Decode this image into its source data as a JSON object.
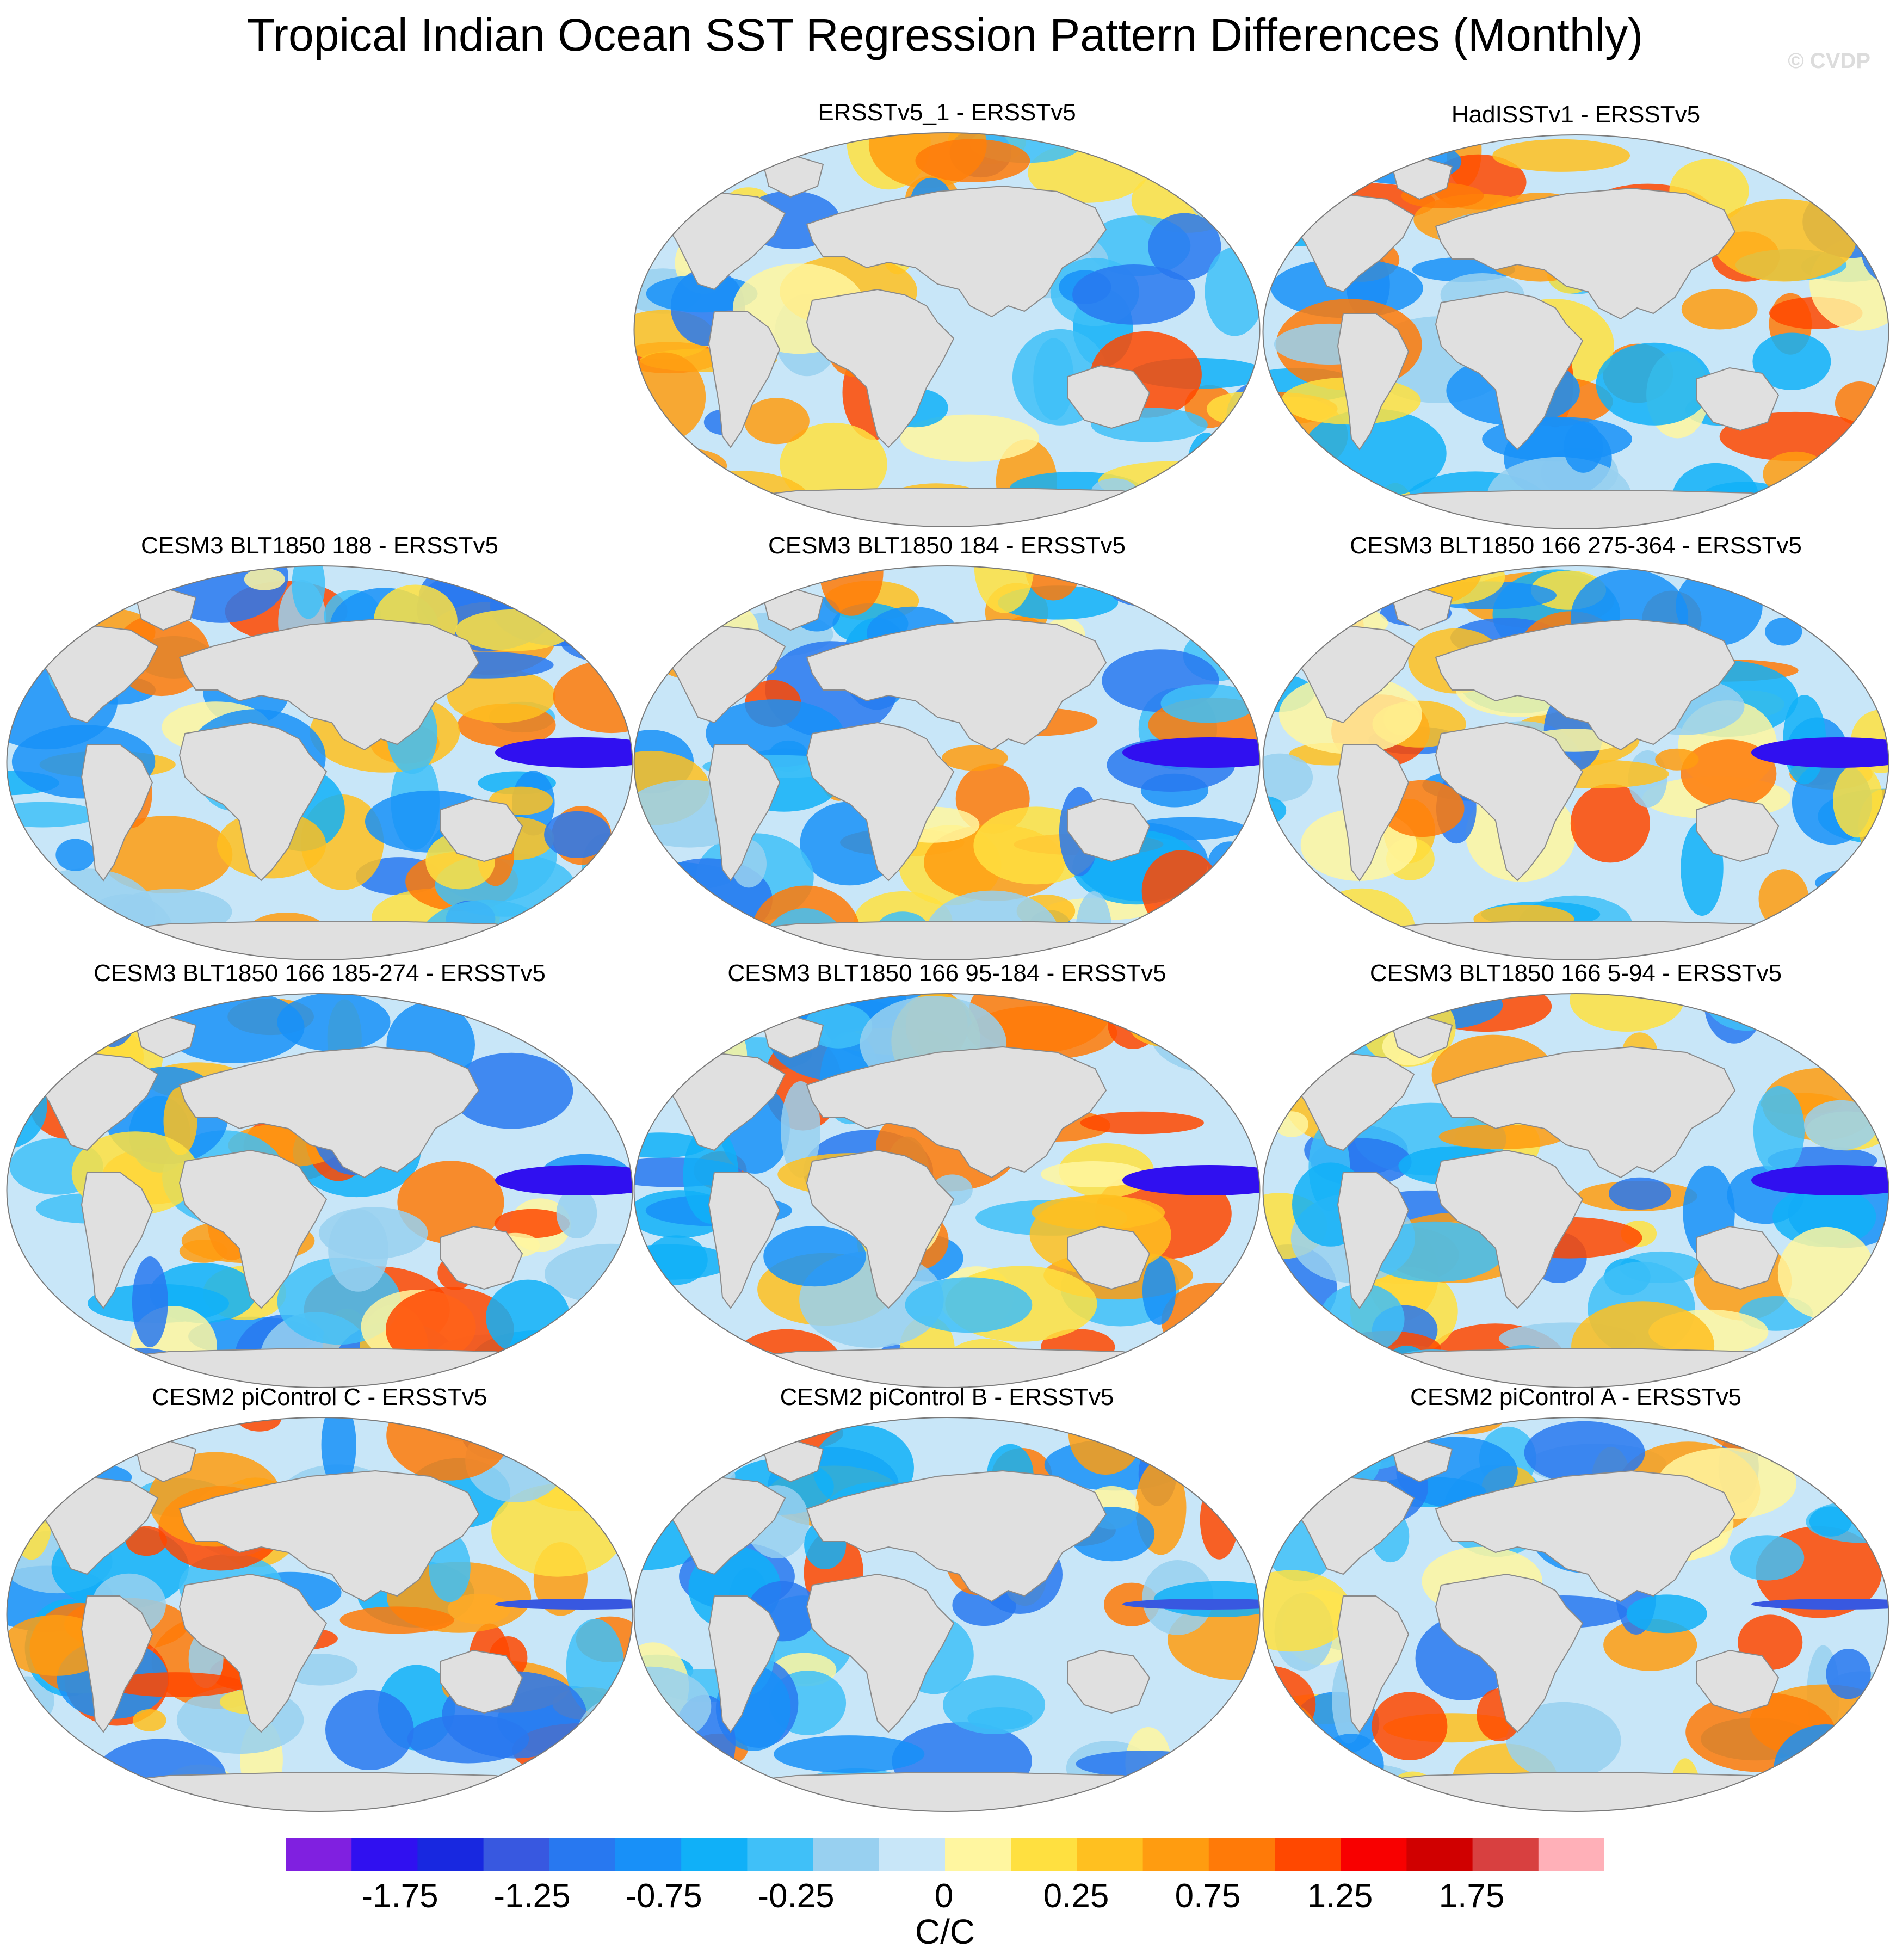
{
  "title": "Tropical Indian Ocean SST Regression Pattern Differences (Monthly)",
  "credit": "© CVDP",
  "colors": {
    "land": "#e0e0e0",
    "coast": "#8a8a8a",
    "scale": [
      "#8020e0",
      "#3010f0",
      "#1828e0",
      "#3858e0",
      "#2878f0",
      "#1890f8",
      "#10b0f8",
      "#40c0f8",
      "#98d0f0",
      "#c8e6f8",
      "#fff6a0",
      "#ffe040",
      "#ffc020",
      "#ff9c10",
      "#ff7a08",
      "#ff4800",
      "#f80000",
      "#d00000",
      "#d84040",
      "#ffb0b8"
    ]
  },
  "panels": [
    {
      "title": "ERSSTv5_1 - ERSSTv5",
      "mix": 0.62
    },
    {
      "title": "HadISSTv1 - ERSSTv5",
      "mix": 0.52
    },
    {
      "title": "CESM3 BLT1850 188 - ERSSTv5",
      "mix": 0.5
    },
    {
      "title": "CESM3 BLT1850 184 - ERSSTv5",
      "mix": 0.45
    },
    {
      "title": "CESM3 BLT1850 166 275-364 - ERSSTv5",
      "mix": 0.48
    },
    {
      "title": "CESM3 BLT1850 166 185-274 - ERSSTv5",
      "mix": 0.55
    },
    {
      "title": "CESM3 BLT1850 166 95-184 - ERSSTv5",
      "mix": 0.52
    },
    {
      "title": "CESM3 BLT1850 166 5-94 - ERSSTv5",
      "mix": 0.5
    },
    {
      "title": "CESM2 piControl C - ERSSTv5",
      "mix": 0.45
    },
    {
      "title": "CESM2 piControl B - ERSSTv5",
      "mix": 0.47
    },
    {
      "title": "CESM2 piControl A - ERSSTv5",
      "mix": 0.47
    }
  ],
  "colorbar": {
    "tick_labels": [
      "-1.75",
      "-1.25",
      "-0.75",
      "-0.25",
      "0",
      "0.25",
      "0.75",
      "1.25",
      "1.75"
    ],
    "units": "C/C"
  }
}
